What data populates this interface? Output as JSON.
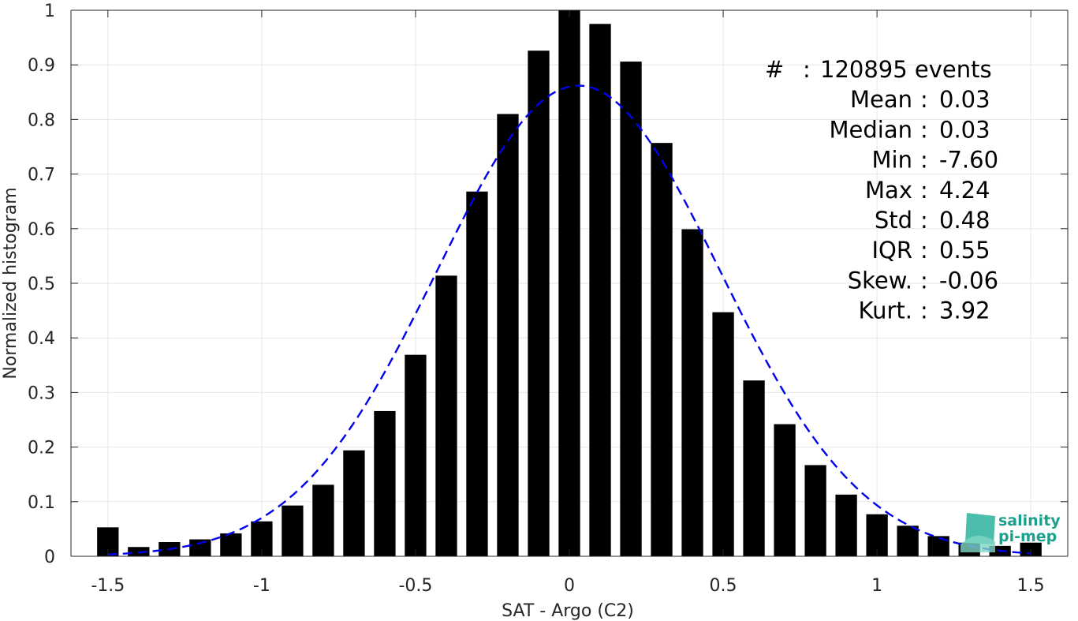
{
  "chart_data": {
    "type": "bar",
    "xlabel": "SAT - Argo (C2)",
    "ylabel": "Normalized histogram",
    "xlim": [
      -1.62,
      1.62
    ],
    "ylim": [
      0,
      1
    ],
    "grid": true,
    "x_ticks": [
      -1.5,
      -1,
      -0.5,
      0,
      0.5,
      1,
      1.5
    ],
    "x_tick_labels": [
      "-1.5",
      "-1",
      "-0.5",
      "0",
      "0.5",
      "1",
      "1.5"
    ],
    "y_ticks": [
      0,
      0.1,
      0.2,
      0.3,
      0.4,
      0.5,
      0.6,
      0.7,
      0.8,
      0.9,
      1
    ],
    "y_tick_labels": [
      "0",
      "0.1",
      "0.2",
      "0.3",
      "0.4",
      "0.5",
      "0.6",
      "0.7",
      "0.8",
      "0.9",
      "1"
    ],
    "bar_color": "#000000",
    "bar_width": 0.07,
    "x": [
      -1.5,
      -1.4,
      -1.3,
      -1.2,
      -1.1,
      -1.0,
      -0.9,
      -0.8,
      -0.7,
      -0.6,
      -0.5,
      -0.4,
      -0.3,
      -0.2,
      -0.1,
      0.0,
      0.1,
      0.2,
      0.3,
      0.4,
      0.5,
      0.6,
      0.7,
      0.8,
      0.9,
      1.0,
      1.1,
      1.2,
      1.3,
      1.4,
      1.5
    ],
    "values": [
      0.053,
      0.017,
      0.026,
      0.031,
      0.042,
      0.064,
      0.093,
      0.131,
      0.194,
      0.266,
      0.369,
      0.514,
      0.668,
      0.81,
      0.926,
      1.0,
      0.975,
      0.906,
      0.757,
      0.599,
      0.447,
      0.322,
      0.242,
      0.167,
      0.113,
      0.077,
      0.056,
      0.037,
      0.025,
      0.019,
      0.025
    ],
    "fit_curve": {
      "style": "dashed",
      "color": "#0000ee",
      "mean": 0.03,
      "std": 0.46,
      "peak": 0.862,
      "x_range": [
        -1.5,
        1.5
      ]
    }
  },
  "stats": [
    {
      "label": "#",
      "sep": ":",
      "value": "120895 events"
    },
    {
      "label": "Mean",
      "sep": ":",
      "value": "0.03"
    },
    {
      "label": "Median",
      "sep": ":",
      "value": "0.03"
    },
    {
      "label": "Min",
      "sep": ":",
      "value": "-7.60"
    },
    {
      "label": "Max",
      "sep": ":",
      "value": "4.24"
    },
    {
      "label": "Std",
      "sep": ":",
      "value": "0.48"
    },
    {
      "label": "IQR",
      "sep": ":",
      "value": "0.55"
    },
    {
      "label": "Skew.",
      "sep": ":",
      "value": "-0.06"
    },
    {
      "label": "Kurt.",
      "sep": ":",
      "value": "3.92"
    }
  ],
  "logo": {
    "line1": "salinity",
    "line2": "pi-mep",
    "color": "#1aa08c"
  }
}
